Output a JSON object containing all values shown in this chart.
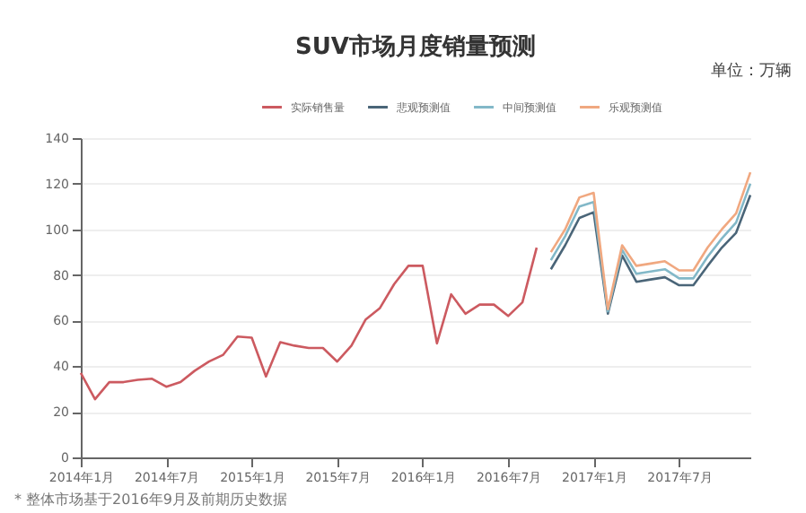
{
  "chart_data": {
    "type": "line",
    "title": "SUV市场月度销量预测",
    "annotations": [
      "单位：万辆",
      "* 整体市场基于2016年9月及前期历史数据"
    ],
    "categories": [
      "2014年1月",
      null,
      null,
      null,
      null,
      null,
      "2014年7月",
      null,
      null,
      null,
      null,
      null,
      "2015年1月",
      null,
      null,
      null,
      null,
      null,
      "2015年7月",
      null,
      null,
      null,
      null,
      null,
      "2016年1月",
      null,
      null,
      null,
      null,
      null,
      "2016年7月",
      null,
      null,
      null,
      null,
      null,
      "2017年1月",
      null,
      null,
      null,
      null,
      null,
      "2017年7月",
      null,
      null,
      null,
      null,
      null
    ],
    "series": [
      {
        "name": "实际销售量",
        "color": "#cc5a60",
        "values": [
          37,
          25.5,
          33,
          33,
          34,
          34.5,
          31,
          33,
          38,
          42,
          45,
          53,
          52.5,
          35.5,
          50.5,
          49,
          48,
          48,
          42,
          49,
          60.5,
          65.5,
          76,
          84,
          84,
          50,
          71.5,
          63,
          67,
          67,
          62,
          68,
          92,
          null,
          null,
          null,
          null,
          null,
          null,
          null,
          null,
          null,
          null,
          null,
          null,
          null,
          null,
          null
        ]
      },
      {
        "name": "悲观预测值",
        "color": "#4a6578",
        "values": [
          null,
          null,
          null,
          null,
          null,
          null,
          null,
          null,
          null,
          null,
          null,
          null,
          null,
          null,
          null,
          null,
          null,
          null,
          null,
          null,
          null,
          null,
          null,
          null,
          null,
          null,
          null,
          null,
          null,
          null,
          null,
          null,
          null,
          82.5,
          93,
          105,
          107.5,
          63,
          88.5,
          77,
          78,
          79,
          75.5,
          75.5,
          84,
          92,
          98.5,
          115
        ]
      },
      {
        "name": "中间预测值",
        "color": "#82b8c8",
        "values": [
          null,
          null,
          null,
          null,
          null,
          null,
          null,
          null,
          null,
          null,
          null,
          null,
          null,
          null,
          null,
          null,
          null,
          null,
          null,
          null,
          null,
          null,
          null,
          null,
          null,
          null,
          null,
          null,
          null,
          null,
          null,
          null,
          null,
          86.5,
          97,
          110,
          112,
          64,
          91,
          80.5,
          81.5,
          82.5,
          78.5,
          78.5,
          88,
          96,
          103,
          120
        ]
      },
      {
        "name": "乐观预测值",
        "color": "#f0a880",
        "values": [
          null,
          null,
          null,
          null,
          null,
          null,
          null,
          null,
          null,
          null,
          null,
          null,
          null,
          null,
          null,
          null,
          null,
          null,
          null,
          null,
          null,
          null,
          null,
          null,
          null,
          null,
          null,
          null,
          null,
          null,
          null,
          null,
          null,
          90,
          100,
          114,
          116,
          65,
          93,
          84,
          85,
          86,
          82,
          82,
          92,
          100,
          107,
          125
        ]
      }
    ],
    "ylim": [
      0,
      140
    ],
    "yticks": [
      0,
      20,
      40,
      60,
      80,
      100,
      120,
      140
    ],
    "grid": "y",
    "legend": "top",
    "marker": "none",
    "line_style": "solid"
  }
}
